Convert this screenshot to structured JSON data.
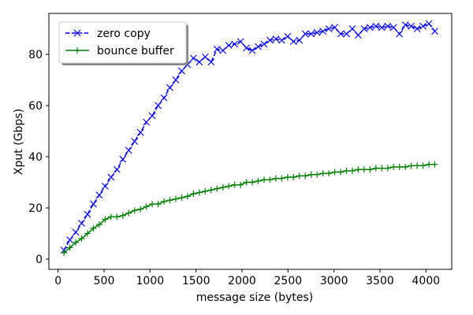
{
  "chart_data": {
    "type": "line",
    "title": "",
    "xlabel": "message size (bytes)",
    "ylabel": "Xput (Gbps)",
    "xlim": [
      -100,
      4280
    ],
    "ylim": [
      -4,
      96
    ],
    "x_ticks": [
      0,
      500,
      1000,
      1500,
      2000,
      2500,
      3000,
      3500,
      4000
    ],
    "y_ticks": [
      0,
      20,
      40,
      60,
      80
    ],
    "x_tick_labels": [
      "0",
      "500",
      "1000",
      "1500",
      "2000",
      "2500",
      "3000",
      "3500",
      "4000"
    ],
    "y_tick_labels": [
      "0",
      "20",
      "40",
      "60",
      "80"
    ],
    "grid": false,
    "legend_position": "top-left",
    "x": [
      64,
      128,
      192,
      256,
      320,
      384,
      448,
      512,
      576,
      640,
      704,
      768,
      832,
      896,
      960,
      1024,
      1088,
      1152,
      1216,
      1280,
      1344,
      1408,
      1472,
      1536,
      1600,
      1664,
      1728,
      1792,
      1856,
      1920,
      1984,
      2048,
      2112,
      2176,
      2240,
      2304,
      2368,
      2432,
      2496,
      2560,
      2624,
      2688,
      2752,
      2816,
      2880,
      2944,
      3008,
      3072,
      3136,
      3200,
      3264,
      3328,
      3392,
      3456,
      3520,
      3584,
      3648,
      3712,
      3776,
      3840,
      3904,
      3968,
      4032,
      4096
    ],
    "series": [
      {
        "name": "zero copy",
        "color": "#0000ff",
        "line_style": "dashed",
        "marker": "x",
        "values": [
          3.5,
          7.5,
          10.5,
          14,
          17.5,
          21.5,
          25,
          28.5,
          32,
          35,
          39,
          42.5,
          46,
          49.5,
          53.5,
          56,
          60,
          63,
          67,
          70,
          73.5,
          76,
          78.5,
          77,
          79,
          77,
          82,
          81.5,
          83.5,
          84,
          85,
          82.5,
          81.5,
          83,
          84,
          85.5,
          86,
          85.5,
          87,
          85,
          85.5,
          88,
          88,
          88.5,
          89,
          90,
          90.5,
          88,
          88,
          90,
          87.5,
          90,
          90.5,
          91,
          90.5,
          91,
          90.5,
          88,
          91.5,
          91,
          90,
          91,
          92,
          89
        ]
      },
      {
        "name": "bounce buffer",
        "color": "#008000",
        "line_style": "solid",
        "marker": "+",
        "values": [
          2.5,
          4.5,
          6.5,
          8,
          10,
          12,
          13.5,
          15.5,
          16.5,
          16.5,
          17,
          18,
          19,
          19.5,
          20.5,
          21.5,
          21.5,
          22.5,
          23,
          23.5,
          24,
          24.5,
          25.5,
          26,
          26.5,
          27,
          27.5,
          28,
          28.5,
          29,
          29,
          30,
          30,
          30.5,
          31,
          31,
          31.5,
          31.5,
          32,
          32,
          32.5,
          32.5,
          33,
          33,
          33.5,
          33.5,
          34,
          34,
          34.5,
          34.5,
          35,
          35,
          35,
          35.5,
          35.5,
          35.5,
          36,
          36,
          36,
          36.5,
          36.5,
          36.5,
          37,
          37
        ]
      }
    ]
  }
}
